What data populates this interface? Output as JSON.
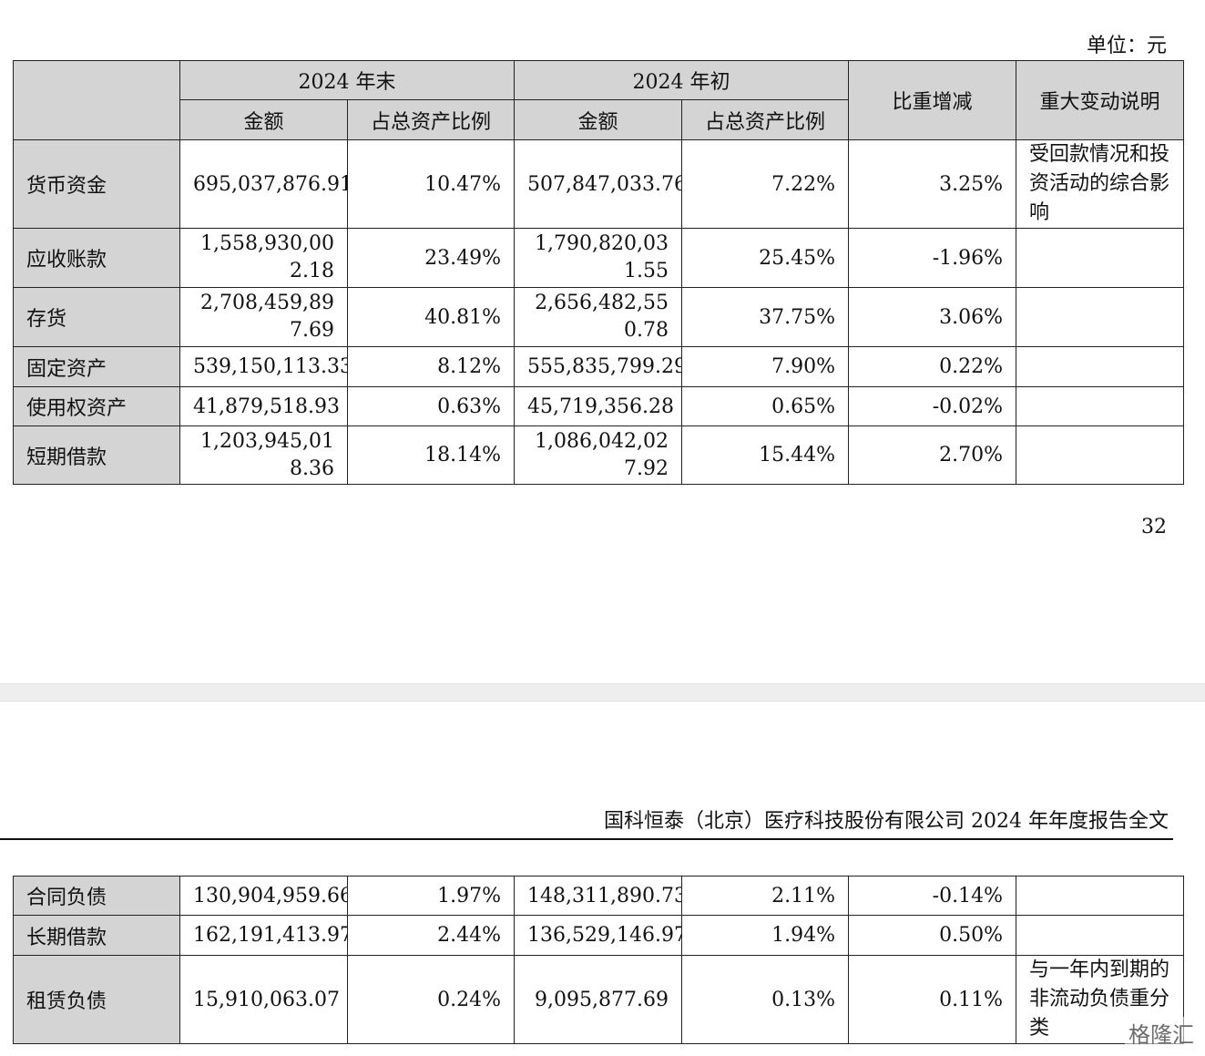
{
  "unit_label": "单位：元",
  "header": {
    "end_group": "2024 年末",
    "begin_group": "2024 年初",
    "amount": "金额",
    "ratio": "占总资产比例",
    "change": "比重增减",
    "note": "重大变动说明"
  },
  "rows_top": [
    {
      "label": "货币资金",
      "end_amount": "695,037,876.91",
      "end_ratio": "10.47%",
      "begin_amount": "507,847,033.76",
      "begin_ratio": "7.22%",
      "change": "3.25%",
      "note": "受回款情况和投资活动的综合影响"
    },
    {
      "label": "应收账款",
      "end_amount": "1,558,930,002.18",
      "end_ratio": "23.49%",
      "begin_amount": "1,790,820,031.55",
      "begin_ratio": "25.45%",
      "change": "-1.96%",
      "note": ""
    },
    {
      "label": "存货",
      "end_amount": "2,708,459,897.69",
      "end_ratio": "40.81%",
      "begin_amount": "2,656,482,550.78",
      "begin_ratio": "37.75%",
      "change": "3.06%",
      "note": ""
    },
    {
      "label": "固定资产",
      "end_amount": "539,150,113.33",
      "end_ratio": "8.12%",
      "begin_amount": "555,835,799.29",
      "begin_ratio": "7.90%",
      "change": "0.22%",
      "note": ""
    },
    {
      "label": "使用权资产",
      "end_amount": "41,879,518.93",
      "end_ratio": "0.63%",
      "begin_amount": "45,719,356.28",
      "begin_ratio": "0.65%",
      "change": "-0.02%",
      "note": ""
    },
    {
      "label": "短期借款",
      "end_amount": "1,203,945,018.36",
      "end_ratio": "18.14%",
      "begin_amount": "1,086,042,027.92",
      "begin_ratio": "15.44%",
      "change": "2.70%",
      "note": ""
    }
  ],
  "page_number": "32",
  "doc_header": "国科恒泰（北京）医疗科技股份有限公司 2024 年年度报告全文",
  "rows_bottom": [
    {
      "label": "合同负债",
      "end_amount": "130,904,959.66",
      "end_ratio": "1.97%",
      "begin_amount": "148,311,890.73",
      "begin_ratio": "2.11%",
      "change": "-0.14%",
      "note": ""
    },
    {
      "label": "长期借款",
      "end_amount": "162,191,413.97",
      "end_ratio": "2.44%",
      "begin_amount": "136,529,146.97",
      "begin_ratio": "1.94%",
      "change": "0.50%",
      "note": ""
    },
    {
      "label": "租赁负债",
      "end_amount": "15,910,063.07",
      "end_ratio": "0.24%",
      "begin_amount": "9,095,877.69",
      "begin_ratio": "0.13%",
      "change": "0.11%",
      "note": "与一年内到期的非流动负债重分类"
    }
  ],
  "watermark": "格隆汇"
}
